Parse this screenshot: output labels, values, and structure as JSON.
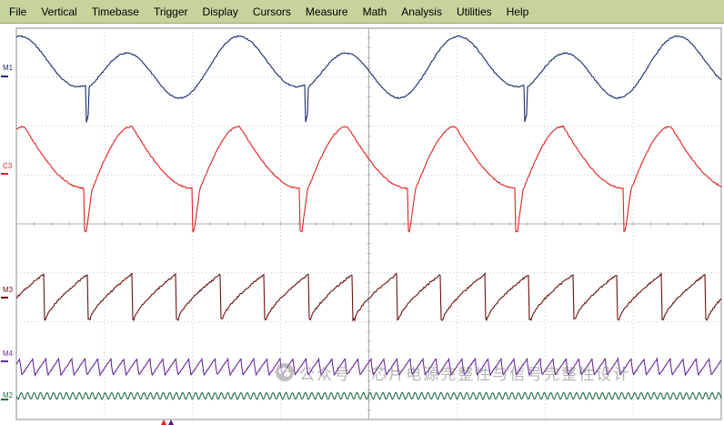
{
  "menu": {
    "items": [
      "File",
      "Vertical",
      "Timebase",
      "Trigger",
      "Display",
      "Cursors",
      "Measure",
      "Math",
      "Analysis",
      "Utilities",
      "Help"
    ]
  },
  "channels": [
    {
      "label": "M1",
      "color": "#1a2a6c"
    },
    {
      "label": "C3",
      "color": "#e02020"
    },
    {
      "label": "M3",
      "color": "#6a1010"
    },
    {
      "label": "M4",
      "color": "#6a2a9a"
    },
    {
      "label": "M2",
      "color": "#207040"
    }
  ],
  "display": {
    "grid": true,
    "grid_color": "#b8b8b8",
    "background": "#ffffff",
    "menu_background": "#c6d39c"
  },
  "trigger_markers": [
    {
      "name": "trigger-marker-red",
      "color": "#e02020"
    },
    {
      "name": "trigger-marker-purple",
      "color": "#4a2070"
    }
  ],
  "watermark": {
    "icon": "wechat-icon",
    "text": "公众号 · 芯片电源完整性与信号完整性设计"
  }
}
